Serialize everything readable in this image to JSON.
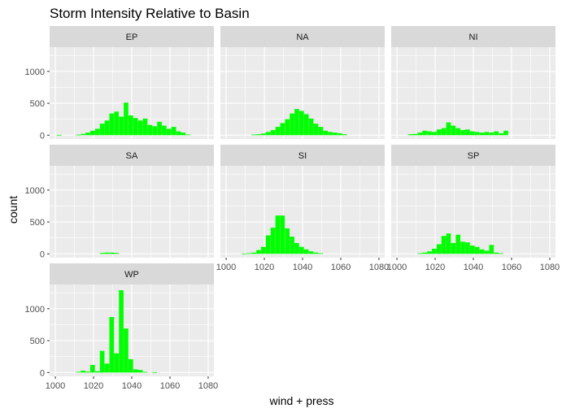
{
  "chart_data": {
    "type": "bar",
    "title": "Storm Intensity Relative to Basin",
    "xlabel": "wind + press",
    "ylabel": "count",
    "xlim": [
      997,
      1083
    ],
    "ylim": [
      -60,
      1380
    ],
    "x_ticks": [
      1000,
      1020,
      1040,
      1060,
      1080
    ],
    "y_ticks": [
      0,
      500,
      1000
    ],
    "bin_width": 2.4,
    "grid": true,
    "bar_color": "#00FF00",
    "panel_background": "#EBEBEB",
    "strip_background": "#D9D9D9",
    "panels": [
      {
        "name": "EP",
        "bins": [
          {
            "x": 1002.0,
            "y": 5
          },
          {
            "x": 1012.0,
            "y": 8
          },
          {
            "x": 1014.5,
            "y": 20
          },
          {
            "x": 1017.0,
            "y": 40
          },
          {
            "x": 1019.5,
            "y": 70
          },
          {
            "x": 1022.0,
            "y": 100
          },
          {
            "x": 1024.5,
            "y": 180
          },
          {
            "x": 1027.0,
            "y": 230
          },
          {
            "x": 1029.5,
            "y": 340
          },
          {
            "x": 1032.0,
            "y": 370
          },
          {
            "x": 1034.5,
            "y": 290
          },
          {
            "x": 1037.0,
            "y": 510
          },
          {
            "x": 1039.5,
            "y": 310
          },
          {
            "x": 1042.0,
            "y": 270
          },
          {
            "x": 1044.5,
            "y": 230
          },
          {
            "x": 1047.0,
            "y": 260
          },
          {
            "x": 1049.5,
            "y": 160
          },
          {
            "x": 1052.0,
            "y": 140
          },
          {
            "x": 1054.5,
            "y": 210
          },
          {
            "x": 1057.0,
            "y": 150
          },
          {
            "x": 1059.5,
            "y": 100
          },
          {
            "x": 1062.0,
            "y": 130
          },
          {
            "x": 1064.5,
            "y": 60
          },
          {
            "x": 1067.0,
            "y": 40
          },
          {
            "x": 1069.5,
            "y": 10
          }
        ]
      },
      {
        "name": "NA",
        "bins": [
          {
            "x": 1014.5,
            "y": 10
          },
          {
            "x": 1017.0,
            "y": 15
          },
          {
            "x": 1019.5,
            "y": 25
          },
          {
            "x": 1022.0,
            "y": 50
          },
          {
            "x": 1024.5,
            "y": 80
          },
          {
            "x": 1027.0,
            "y": 130
          },
          {
            "x": 1029.5,
            "y": 190
          },
          {
            "x": 1032.0,
            "y": 250
          },
          {
            "x": 1034.5,
            "y": 340
          },
          {
            "x": 1037.0,
            "y": 410
          },
          {
            "x": 1039.5,
            "y": 380
          },
          {
            "x": 1042.0,
            "y": 330
          },
          {
            "x": 1044.5,
            "y": 260
          },
          {
            "x": 1047.0,
            "y": 180
          },
          {
            "x": 1049.5,
            "y": 130
          },
          {
            "x": 1052.0,
            "y": 70
          },
          {
            "x": 1054.5,
            "y": 50
          },
          {
            "x": 1057.0,
            "y": 40
          },
          {
            "x": 1059.5,
            "y": 30
          },
          {
            "x": 1062.0,
            "y": 15
          }
        ]
      },
      {
        "name": "NI",
        "bins": [
          {
            "x": 1007.0,
            "y": 15
          },
          {
            "x": 1009.5,
            "y": 20
          },
          {
            "x": 1012.0,
            "y": 40
          },
          {
            "x": 1014.5,
            "y": 70
          },
          {
            "x": 1017.0,
            "y": 60
          },
          {
            "x": 1019.5,
            "y": 50
          },
          {
            "x": 1022.0,
            "y": 90
          },
          {
            "x": 1024.5,
            "y": 110
          },
          {
            "x": 1027.0,
            "y": 200
          },
          {
            "x": 1029.5,
            "y": 150
          },
          {
            "x": 1032.0,
            "y": 110
          },
          {
            "x": 1034.5,
            "y": 80
          },
          {
            "x": 1037.0,
            "y": 90
          },
          {
            "x": 1039.5,
            "y": 60
          },
          {
            "x": 1042.0,
            "y": 50
          },
          {
            "x": 1044.5,
            "y": 40
          },
          {
            "x": 1047.0,
            "y": 50
          },
          {
            "x": 1049.5,
            "y": 40
          },
          {
            "x": 1052.0,
            "y": 60
          },
          {
            "x": 1054.5,
            "y": 30
          },
          {
            "x": 1057.0,
            "y": 70
          }
        ]
      },
      {
        "name": "SA",
        "bins": [
          {
            "x": 1024.5,
            "y": 15
          },
          {
            "x": 1027.0,
            "y": 20
          },
          {
            "x": 1029.5,
            "y": 20
          },
          {
            "x": 1032.0,
            "y": 15
          }
        ]
      },
      {
        "name": "SI",
        "bins": [
          {
            "x": 1009.5,
            "y": 5
          },
          {
            "x": 1012.0,
            "y": 10
          },
          {
            "x": 1014.5,
            "y": 20
          },
          {
            "x": 1017.0,
            "y": 60
          },
          {
            "x": 1019.5,
            "y": 110
          },
          {
            "x": 1022.0,
            "y": 290
          },
          {
            "x": 1024.5,
            "y": 410
          },
          {
            "x": 1027.0,
            "y": 600
          },
          {
            "x": 1029.5,
            "y": 600
          },
          {
            "x": 1032.0,
            "y": 400
          },
          {
            "x": 1034.5,
            "y": 270
          },
          {
            "x": 1037.0,
            "y": 170
          },
          {
            "x": 1039.5,
            "y": 110
          },
          {
            "x": 1042.0,
            "y": 70
          },
          {
            "x": 1044.5,
            "y": 40
          },
          {
            "x": 1047.0,
            "y": 20
          },
          {
            "x": 1049.5,
            "y": 10
          }
        ]
      },
      {
        "name": "SP",
        "bins": [
          {
            "x": 1012.0,
            "y": 10
          },
          {
            "x": 1014.5,
            "y": 20
          },
          {
            "x": 1017.0,
            "y": 40
          },
          {
            "x": 1019.5,
            "y": 80
          },
          {
            "x": 1022.0,
            "y": 150
          },
          {
            "x": 1024.5,
            "y": 280
          },
          {
            "x": 1027.0,
            "y": 320
          },
          {
            "x": 1029.5,
            "y": 170
          },
          {
            "x": 1032.0,
            "y": 300
          },
          {
            "x": 1034.5,
            "y": 190
          },
          {
            "x": 1037.0,
            "y": 180
          },
          {
            "x": 1039.5,
            "y": 130
          },
          {
            "x": 1042.0,
            "y": 110
          },
          {
            "x": 1044.5,
            "y": 70
          },
          {
            "x": 1047.0,
            "y": 50
          },
          {
            "x": 1049.5,
            "y": 140
          },
          {
            "x": 1052.0,
            "y": 20
          },
          {
            "x": 1054.5,
            "y": 10
          }
        ]
      },
      {
        "name": "WP",
        "bins": [
          {
            "x": 1012.0,
            "y": 10
          },
          {
            "x": 1014.5,
            "y": 30
          },
          {
            "x": 1017.0,
            "y": 15
          },
          {
            "x": 1019.5,
            "y": 120
          },
          {
            "x": 1022.0,
            "y": 20
          },
          {
            "x": 1024.5,
            "y": 340
          },
          {
            "x": 1027.0,
            "y": 140
          },
          {
            "x": 1029.5,
            "y": 870
          },
          {
            "x": 1032.0,
            "y": 300
          },
          {
            "x": 1034.5,
            "y": 1290
          },
          {
            "x": 1037.0,
            "y": 690
          },
          {
            "x": 1039.5,
            "y": 210
          },
          {
            "x": 1042.0,
            "y": 50
          },
          {
            "x": 1044.5,
            "y": 40
          },
          {
            "x": 1047.0,
            "y": 10
          },
          {
            "x": 1052.0,
            "y": 5
          }
        ]
      }
    ]
  }
}
